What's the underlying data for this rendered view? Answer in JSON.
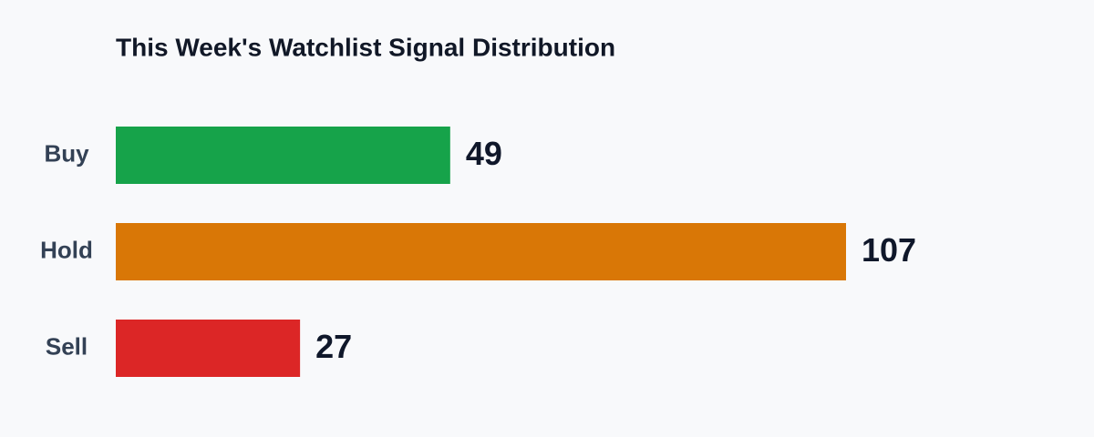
{
  "chart_data": {
    "type": "bar",
    "orientation": "horizontal",
    "title": "This Week's Watchlist Signal Distribution",
    "categories": [
      "Buy",
      "Hold",
      "Sell"
    ],
    "values": [
      49,
      107,
      27
    ],
    "colors": [
      "#16a34a",
      "#d97706",
      "#dc2626"
    ]
  }
}
